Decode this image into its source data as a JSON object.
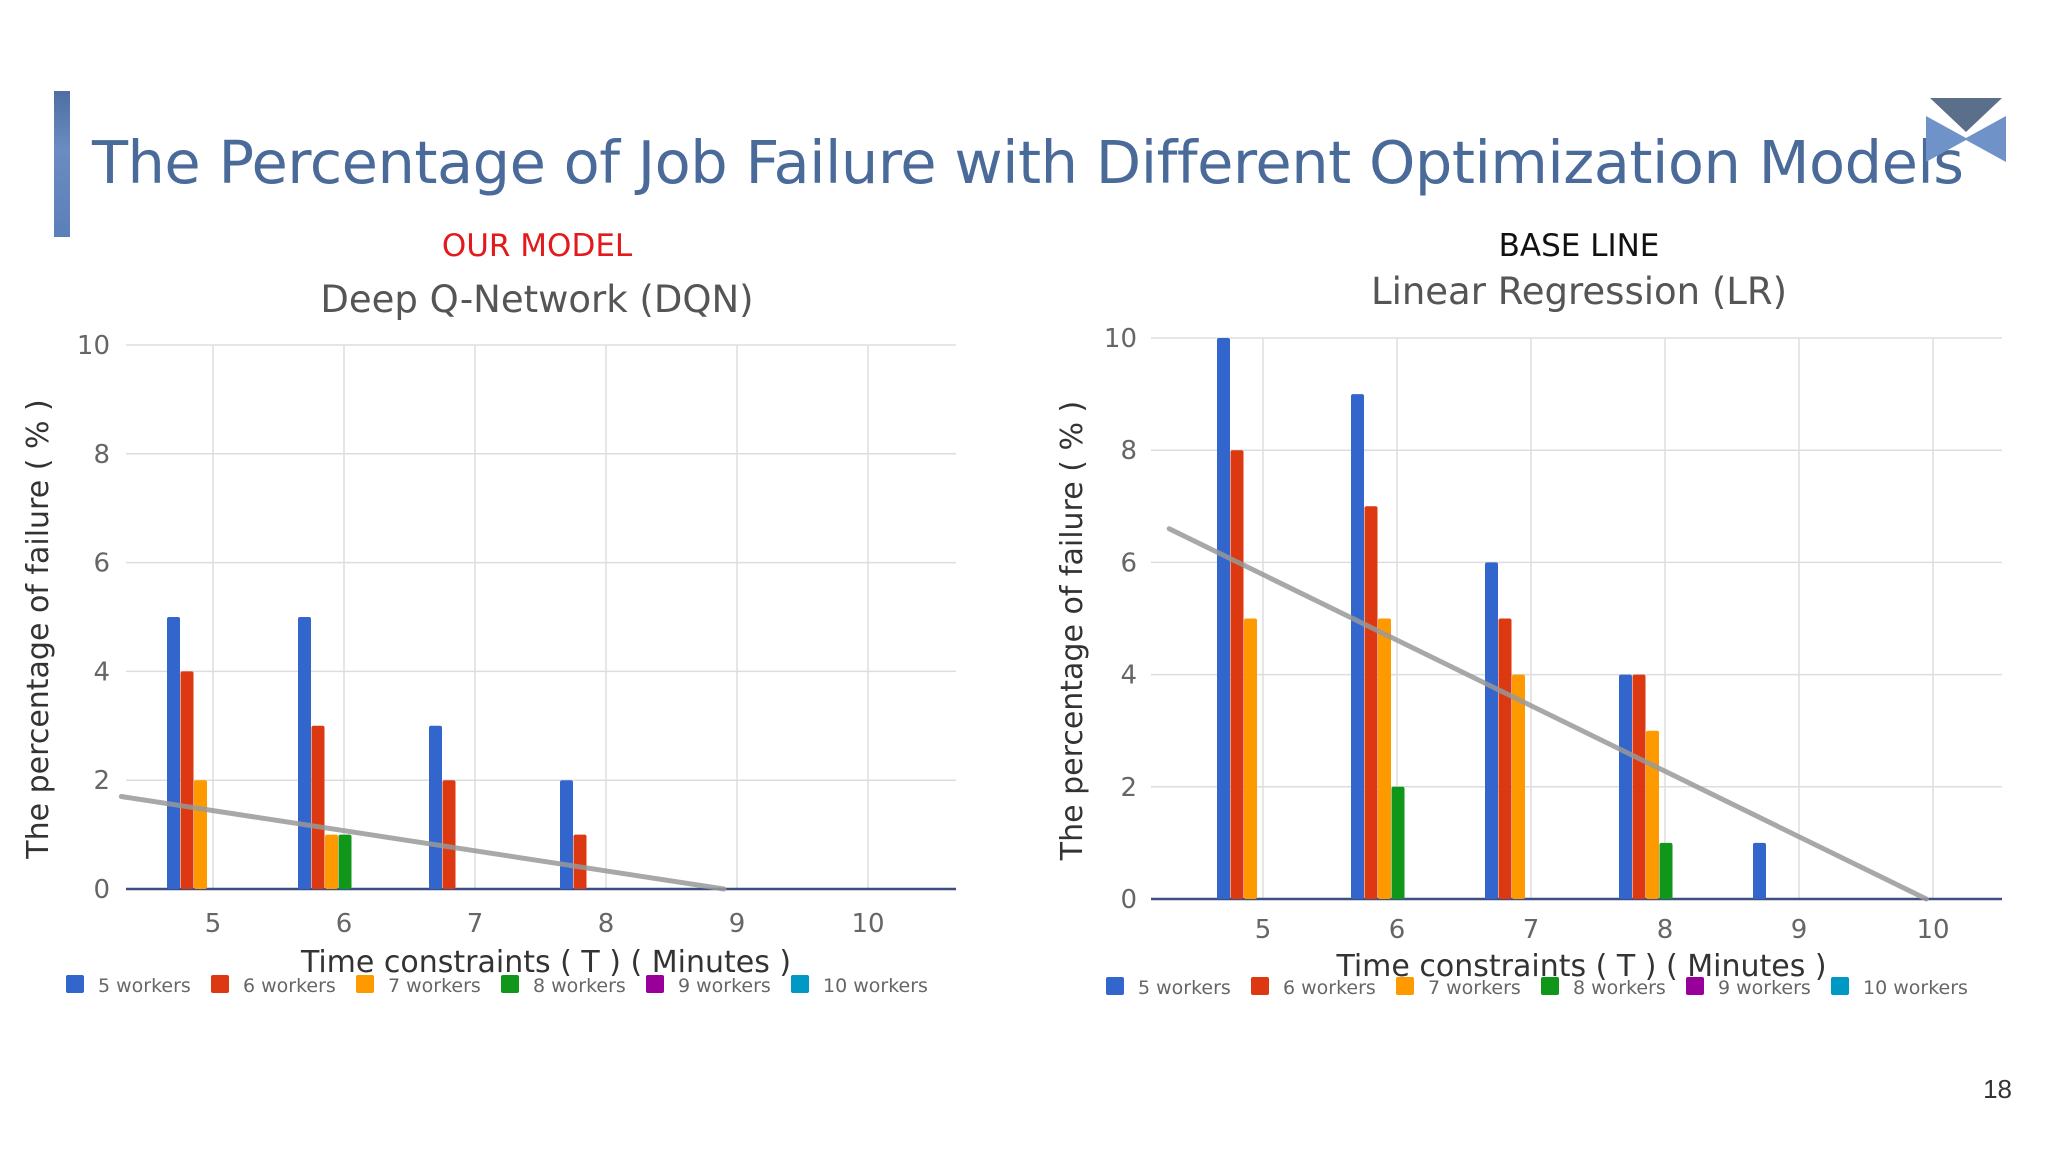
{
  "slide": {
    "title": "The Percentage of Job Failure with Different Optimization Models",
    "page_number": "18",
    "accent_color": "#4a6a9a",
    "logo_icon": "chevron-logo-icon"
  },
  "charts": [
    {
      "label": "OUR MODEL",
      "label_color": "#e31a1c",
      "title": "Deep Q-Network (DQN)"
    },
    {
      "label": "BASE LINE",
      "label_color": "#111111",
      "title": "Linear Regression (LR)"
    }
  ],
  "chart_data": [
    {
      "type": "bar",
      "title": "Deep Q-Network (DQN)",
      "xlabel": "Time constraints ( T ) ( Minutes )",
      "ylabel": "The percentage of failure ( % )",
      "categories": [
        "5",
        "6",
        "7",
        "8",
        "9",
        "10"
      ],
      "ylim": [
        0,
        10
      ],
      "yticks": [
        "0",
        "2",
        "4",
        "6",
        "8",
        "10"
      ],
      "grid": true,
      "legend_position": "bottom",
      "series": [
        {
          "name": "5 workers",
          "color": "#3366cc",
          "values": [
            5,
            5,
            3,
            2,
            0,
            0
          ]
        },
        {
          "name": "6 workers",
          "color": "#dc3912",
          "values": [
            4,
            3,
            2,
            1,
            0,
            0
          ]
        },
        {
          "name": "7 workers",
          "color": "#ff9900",
          "values": [
            2,
            1,
            0,
            0,
            0,
            0
          ]
        },
        {
          "name": "8 workers",
          "color": "#109618",
          "values": [
            0,
            1,
            0,
            0,
            0,
            0
          ]
        },
        {
          "name": "9 workers",
          "color": "#990099",
          "values": [
            0,
            0,
            0,
            0,
            0,
            0
          ]
        },
        {
          "name": "10 workers",
          "color": "#0099c6",
          "values": [
            0,
            0,
            0,
            0,
            0,
            0
          ]
        }
      ],
      "trendline": {
        "color": "#999999",
        "start": [
          4.3,
          1.7
        ],
        "end": [
          8.9,
          0
        ]
      }
    },
    {
      "type": "bar",
      "title": "Linear Regression (LR)",
      "xlabel": "Time constraints ( T ) ( Minutes )",
      "ylabel": "The percentage of failure ( % )",
      "categories": [
        "5",
        "6",
        "7",
        "8",
        "9",
        "10"
      ],
      "ylim": [
        0,
        10
      ],
      "yticks": [
        "0",
        "2",
        "4",
        "6",
        "8",
        "10"
      ],
      "grid": true,
      "legend_position": "bottom",
      "series": [
        {
          "name": "5 workers",
          "color": "#3366cc",
          "values": [
            10,
            9,
            6,
            4,
            1,
            0
          ]
        },
        {
          "name": "6 workers",
          "color": "#dc3912",
          "values": [
            8,
            7,
            5,
            4,
            0,
            0
          ]
        },
        {
          "name": "7 workers",
          "color": "#ff9900",
          "values": [
            5,
            5,
            4,
            3,
            0,
            0
          ]
        },
        {
          "name": "8 workers",
          "color": "#109618",
          "values": [
            0,
            2,
            0,
            1,
            0,
            0
          ]
        },
        {
          "name": "9 workers",
          "color": "#990099",
          "values": [
            0,
            0,
            0,
            0,
            0,
            0
          ]
        },
        {
          "name": "10 workers",
          "color": "#0099c6",
          "values": [
            0,
            0,
            0,
            0,
            0,
            0
          ]
        }
      ],
      "trendline": {
        "color": "#999999",
        "start": [
          4.3,
          6.6
        ],
        "end": [
          9.95,
          0
        ]
      }
    }
  ]
}
